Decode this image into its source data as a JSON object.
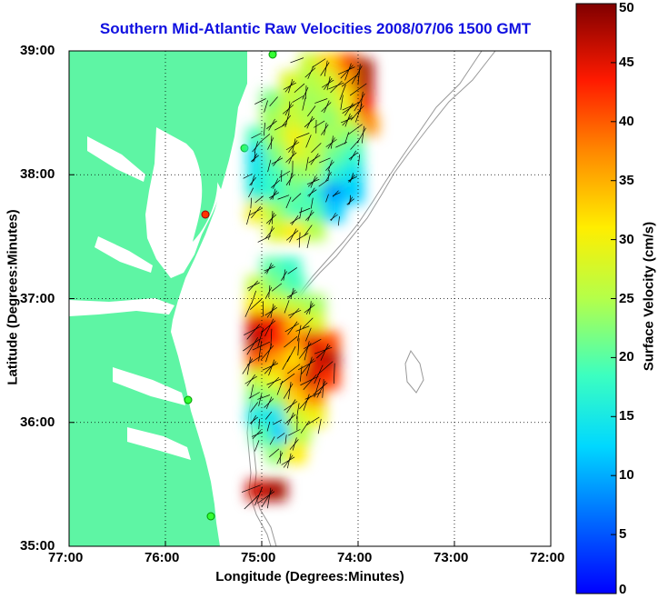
{
  "chart_data": {
    "type": "heatmap",
    "title": "Southern Mid-Atlantic Raw Velocities 2008/07/06 1500 GMT",
    "xlabel": "Longitude (Degrees:Minutes)",
    "ylabel": "Latitude (Degrees:Minutes)",
    "x_ticks": [
      {
        "value": -77,
        "label": "77:00"
      },
      {
        "value": -76,
        "label": "76:00"
      },
      {
        "value": -75,
        "label": "75:00"
      },
      {
        "value": -74,
        "label": "74:00"
      },
      {
        "value": -73,
        "label": "73:00"
      },
      {
        "value": -72,
        "label": "72:00"
      }
    ],
    "y_ticks": [
      {
        "value": 35,
        "label": "35:00"
      },
      {
        "value": 36,
        "label": "36:00"
      },
      {
        "value": 37,
        "label": "37:00"
      },
      {
        "value": 38,
        "label": "38:00"
      },
      {
        "value": 39,
        "label": "39:00"
      }
    ],
    "xlim": [
      -77,
      -72
    ],
    "ylim": [
      35,
      39
    ],
    "grid": "dotted",
    "colorbar": {
      "label": "Surface Velocity (cm/s)",
      "range": [
        0,
        50
      ],
      "colormap": "jet",
      "ticks": [
        {
          "value": 0,
          "label": "0"
        },
        {
          "value": 5,
          "label": "5"
        },
        {
          "value": 10,
          "label": "10"
        },
        {
          "value": 15,
          "label": "15"
        },
        {
          "value": 20,
          "label": "20"
        },
        {
          "value": 25,
          "label": "25"
        },
        {
          "value": 30,
          "label": "30"
        },
        {
          "value": 35,
          "label": "35"
        },
        {
          "value": 40,
          "label": "40"
        },
        {
          "value": 45,
          "label": "45"
        },
        {
          "value": 50,
          "label": "50"
        }
      ]
    },
    "velocity_field": [
      {
        "lon": -74.5,
        "lat": 38.9,
        "speed": 27
      },
      {
        "lon": -74.3,
        "lat": 38.9,
        "speed": 33
      },
      {
        "lon": -74.1,
        "lat": 38.9,
        "speed": 40
      },
      {
        "lon": -73.95,
        "lat": 38.85,
        "speed": 48
      },
      {
        "lon": -74.7,
        "lat": 38.75,
        "speed": 28
      },
      {
        "lon": -74.5,
        "lat": 38.75,
        "speed": 25
      },
      {
        "lon": -74.3,
        "lat": 38.75,
        "speed": 27
      },
      {
        "lon": -74.1,
        "lat": 38.75,
        "speed": 35
      },
      {
        "lon": -73.95,
        "lat": 38.7,
        "speed": 47
      },
      {
        "lon": -74.9,
        "lat": 38.6,
        "speed": 22
      },
      {
        "lon": -74.7,
        "lat": 38.6,
        "speed": 26
      },
      {
        "lon": -74.5,
        "lat": 38.6,
        "speed": 24
      },
      {
        "lon": -74.3,
        "lat": 38.6,
        "speed": 25
      },
      {
        "lon": -74.1,
        "lat": 38.6,
        "speed": 30
      },
      {
        "lon": -73.95,
        "lat": 38.55,
        "speed": 44
      },
      {
        "lon": -74.9,
        "lat": 38.45,
        "speed": 24
      },
      {
        "lon": -74.7,
        "lat": 38.45,
        "speed": 27
      },
      {
        "lon": -74.5,
        "lat": 38.45,
        "speed": 25
      },
      {
        "lon": -74.3,
        "lat": 38.45,
        "speed": 23
      },
      {
        "lon": -74.1,
        "lat": 38.45,
        "speed": 27
      },
      {
        "lon": -73.9,
        "lat": 38.4,
        "speed": 37
      },
      {
        "lon": -75.05,
        "lat": 38.3,
        "speed": 19
      },
      {
        "lon": -74.85,
        "lat": 38.3,
        "speed": 25
      },
      {
        "lon": -74.65,
        "lat": 38.3,
        "speed": 30
      },
      {
        "lon": -74.45,
        "lat": 38.3,
        "speed": 26
      },
      {
        "lon": -74.25,
        "lat": 38.3,
        "speed": 24
      },
      {
        "lon": -74.05,
        "lat": 38.3,
        "speed": 22
      },
      {
        "lon": -75.05,
        "lat": 38.15,
        "speed": 14
      },
      {
        "lon": -74.85,
        "lat": 38.15,
        "speed": 22
      },
      {
        "lon": -74.65,
        "lat": 38.15,
        "speed": 28
      },
      {
        "lon": -74.45,
        "lat": 38.15,
        "speed": 26
      },
      {
        "lon": -74.25,
        "lat": 38.15,
        "speed": 21
      },
      {
        "lon": -74.05,
        "lat": 38.15,
        "speed": 18
      },
      {
        "lon": -75.05,
        "lat": 38.0,
        "speed": 15
      },
      {
        "lon": -74.85,
        "lat": 38.0,
        "speed": 19
      },
      {
        "lon": -74.65,
        "lat": 38.0,
        "speed": 23
      },
      {
        "lon": -74.45,
        "lat": 38.0,
        "speed": 24
      },
      {
        "lon": -74.25,
        "lat": 38.0,
        "speed": 17
      },
      {
        "lon": -74.05,
        "lat": 38.0,
        "speed": 14
      },
      {
        "lon": -75.05,
        "lat": 37.85,
        "speed": 16
      },
      {
        "lon": -74.85,
        "lat": 37.85,
        "speed": 18
      },
      {
        "lon": -74.65,
        "lat": 37.85,
        "speed": 21
      },
      {
        "lon": -74.45,
        "lat": 37.85,
        "speed": 17
      },
      {
        "lon": -74.25,
        "lat": 37.85,
        "speed": 9
      },
      {
        "lon": -74.05,
        "lat": 37.85,
        "speed": 12
      },
      {
        "lon": -75.05,
        "lat": 37.7,
        "speed": 30
      },
      {
        "lon": -74.85,
        "lat": 37.7,
        "speed": 24
      },
      {
        "lon": -74.65,
        "lat": 37.7,
        "speed": 19
      },
      {
        "lon": -74.45,
        "lat": 37.7,
        "speed": 20
      },
      {
        "lon": -74.25,
        "lat": 37.7,
        "speed": 12
      },
      {
        "lon": -74.85,
        "lat": 37.55,
        "speed": 28
      },
      {
        "lon": -74.65,
        "lat": 37.55,
        "speed": 31
      },
      {
        "lon": -74.45,
        "lat": 37.55,
        "speed": 25
      },
      {
        "lon": -74.9,
        "lat": 37.25,
        "speed": 20
      },
      {
        "lon": -74.7,
        "lat": 37.25,
        "speed": 18
      },
      {
        "lon": -75.05,
        "lat": 37.1,
        "speed": 26
      },
      {
        "lon": -74.85,
        "lat": 37.1,
        "speed": 22
      },
      {
        "lon": -74.65,
        "lat": 37.1,
        "speed": 19
      },
      {
        "lon": -75.05,
        "lat": 36.95,
        "speed": 31
      },
      {
        "lon": -74.85,
        "lat": 36.95,
        "speed": 28
      },
      {
        "lon": -74.65,
        "lat": 36.95,
        "speed": 26
      },
      {
        "lon": -74.45,
        "lat": 36.95,
        "speed": 24
      },
      {
        "lon": -75.05,
        "lat": 36.8,
        "speed": 45
      },
      {
        "lon": -74.85,
        "lat": 36.8,
        "speed": 44
      },
      {
        "lon": -74.65,
        "lat": 36.8,
        "speed": 34
      },
      {
        "lon": -74.45,
        "lat": 36.8,
        "speed": 28
      },
      {
        "lon": -75.05,
        "lat": 36.65,
        "speed": 47
      },
      {
        "lon": -74.85,
        "lat": 36.65,
        "speed": 43
      },
      {
        "lon": -74.65,
        "lat": 36.65,
        "speed": 37
      },
      {
        "lon": -74.45,
        "lat": 36.65,
        "speed": 45
      },
      {
        "lon": -74.3,
        "lat": 36.65,
        "speed": 41
      },
      {
        "lon": -75.05,
        "lat": 36.5,
        "speed": 40
      },
      {
        "lon": -74.85,
        "lat": 36.5,
        "speed": 36
      },
      {
        "lon": -74.65,
        "lat": 36.5,
        "speed": 32
      },
      {
        "lon": -74.45,
        "lat": 36.5,
        "speed": 45
      },
      {
        "lon": -74.3,
        "lat": 36.5,
        "speed": 47
      },
      {
        "lon": -75.05,
        "lat": 36.35,
        "speed": 27
      },
      {
        "lon": -74.85,
        "lat": 36.35,
        "speed": 30
      },
      {
        "lon": -74.65,
        "lat": 36.35,
        "speed": 38
      },
      {
        "lon": -74.45,
        "lat": 36.35,
        "speed": 46
      },
      {
        "lon": -74.3,
        "lat": 36.35,
        "speed": 42
      },
      {
        "lon": -75.05,
        "lat": 36.2,
        "speed": 22
      },
      {
        "lon": -74.85,
        "lat": 36.2,
        "speed": 24
      },
      {
        "lon": -74.65,
        "lat": 36.2,
        "speed": 33
      },
      {
        "lon": -74.45,
        "lat": 36.2,
        "speed": 38
      },
      {
        "lon": -75.05,
        "lat": 36.05,
        "speed": 15
      },
      {
        "lon": -74.85,
        "lat": 36.05,
        "speed": 14
      },
      {
        "lon": -74.65,
        "lat": 36.05,
        "speed": 27
      },
      {
        "lon": -74.45,
        "lat": 36.05,
        "speed": 30
      },
      {
        "lon": -75.0,
        "lat": 35.9,
        "speed": 20
      },
      {
        "lon": -74.8,
        "lat": 35.9,
        "speed": 12
      },
      {
        "lon": -74.6,
        "lat": 35.9,
        "speed": 25
      },
      {
        "lon": -74.85,
        "lat": 35.75,
        "speed": 23
      },
      {
        "lon": -74.65,
        "lat": 35.75,
        "speed": 31
      },
      {
        "lon": -75.05,
        "lat": 35.45,
        "speed": 46
      },
      {
        "lon": -74.85,
        "lat": 35.45,
        "speed": 48
      }
    ]
  }
}
